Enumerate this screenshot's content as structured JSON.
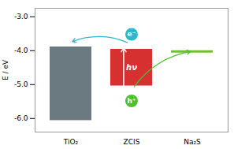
{
  "chart_data": {
    "type": "floating_bar",
    "ylabel": "E / eV",
    "categories": [
      "TiO₂",
      "ZCIS",
      "Na₂S"
    ],
    "values": [
      [
        -6.2,
        -3.75
      ],
      [
        -5.18,
        -3.82
      ],
      [
        -4.02,
        -4.02
      ]
    ],
    "colors": [
      "#6a7a80",
      "#d63030",
      "#70c030"
    ],
    "ylim": [
      -6.4,
      -2.75
    ],
    "yticks": [
      {
        "value": -6.0,
        "label": "-6.0"
      },
      {
        "value": -5.0,
        "label": "-5.0"
      },
      {
        "value": -4.0,
        "label": "-4.0"
      },
      {
        "value": -3.0,
        "label": "-3.0"
      }
    ],
    "annotations": [
      {
        "text": "hν",
        "category": "ZCIS",
        "anchor": "middle",
        "color": "#ffffff"
      },
      {
        "text": "e⁻",
        "category": "ZCIS",
        "anchor": "top",
        "color": "#30b8c8",
        "target": "TiO₂"
      },
      {
        "text": "h⁺",
        "category": "ZCIS",
        "anchor": "bottom",
        "color": "#50c030",
        "target": "Na₂S"
      }
    ]
  }
}
